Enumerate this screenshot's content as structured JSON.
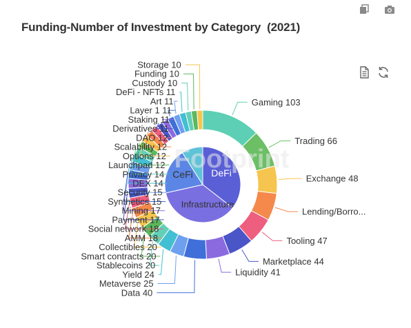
{
  "chart_data": {
    "type": "pie",
    "title": "Funding-Number of Investment by Category  (2021)",
    "watermark": "Footprint",
    "inner_ring": [
      {
        "name": "DeFi",
        "color": "#5a5fd6"
      },
      {
        "name": "Infrastructure",
        "color": "#7a6fe0"
      },
      {
        "name": "CeFi",
        "color": "#5b86e5"
      },
      {
        "name": "",
        "color": "#5fc3d8"
      }
    ],
    "series": [
      {
        "name": "Gaming",
        "value": 103,
        "label": "Gaming 103",
        "color": "#5ccfb4"
      },
      {
        "name": "Trading",
        "value": 66,
        "label": "Trading 66",
        "color": "#6cbf65"
      },
      {
        "name": "Exchange",
        "value": 48,
        "label": "Exchange 48",
        "color": "#f6c54f"
      },
      {
        "name": "Lending/Borrowing",
        "value": 48,
        "label": "Lending/Borro...",
        "color": "#f4894b"
      },
      {
        "name": "Tooling",
        "value": 47,
        "label": "Tooling 47",
        "color": "#ee5e7e"
      },
      {
        "name": "Marketplace",
        "value": 44,
        "label": "Marketplace 44",
        "color": "#4a55c8"
      },
      {
        "name": "Liquidity",
        "value": 41,
        "label": "Liquidity 41",
        "color": "#8b6ae0"
      },
      {
        "name": "Data",
        "value": 40,
        "label": "Data 40",
        "color": "#3f6fd8"
      },
      {
        "name": "Metaverse",
        "value": 25,
        "label": "Metaverse 25",
        "color": "#6fa0ef"
      },
      {
        "name": "Yield",
        "value": 24,
        "label": "Yield 24",
        "color": "#43bfd2"
      },
      {
        "name": "Stablecoins",
        "value": 20,
        "label": "Stablecoins 20",
        "color": "#62d0b8"
      },
      {
        "name": "Smart contracts",
        "value": 20,
        "label": "Smart contracts 20",
        "color": "#5cb85c"
      },
      {
        "name": "Collectibles",
        "value": 20,
        "label": "Collectibles 20",
        "color": "#f6c54f"
      },
      {
        "name": "AMM",
        "value": 18,
        "label": "AMM 18",
        "color": "#f4894b"
      },
      {
        "name": "Social network",
        "value": 18,
        "label": "Social network 18",
        "color": "#ee5e7e"
      },
      {
        "name": "Payment",
        "value": 17,
        "label": "Payment 17",
        "color": "#4a55c8"
      },
      {
        "name": "Mining",
        "value": 17,
        "label": "Mining 17",
        "color": "#8b6ae0"
      },
      {
        "name": "Synthetics",
        "value": 15,
        "label": "Synthetics 15",
        "color": "#3f6fd8"
      },
      {
        "name": "Security",
        "value": 15,
        "label": "Security 15",
        "color": "#6fa0ef"
      },
      {
        "name": "DEX",
        "value": 14,
        "label": "DEX 14",
        "color": "#43bfd2"
      },
      {
        "name": "Privacy",
        "value": 14,
        "label": "Privacy 14",
        "color": "#62d0b8"
      },
      {
        "name": "Launchpad",
        "value": 12,
        "label": "Launchpad 12",
        "color": "#5cb85c"
      },
      {
        "name": "Options",
        "value": 12,
        "label": "Options 12",
        "color": "#f6c54f"
      },
      {
        "name": "Scalability",
        "value": 12,
        "label": "Scalability 12",
        "color": "#f4894b"
      },
      {
        "name": "DAO",
        "value": 12,
        "label": "DAO 12",
        "color": "#ee5e7e"
      },
      {
        "name": "Derivatives",
        "value": 11,
        "label": "Derivatives 11",
        "color": "#4a55c8"
      },
      {
        "name": "Staking",
        "value": 11,
        "label": "Staking 11",
        "color": "#8b6ae0"
      },
      {
        "name": "Layer 1",
        "value": 11,
        "label": "Layer 1 11",
        "color": "#3f6fd8"
      },
      {
        "name": "Art",
        "value": 11,
        "label": "Art 11",
        "color": "#6fa0ef"
      },
      {
        "name": "DeFi - NFTs",
        "value": 11,
        "label": "DeFi - NFTs 11",
        "color": "#43bfd2"
      },
      {
        "name": "Custody",
        "value": 10,
        "label": "Custody 10",
        "color": "#62d0b8"
      },
      {
        "name": "Funding",
        "value": 10,
        "label": "Funding 10",
        "color": "#5cb85c"
      },
      {
        "name": "Storage",
        "value": 10,
        "label": "Storage 10",
        "color": "#f6c54f"
      }
    ]
  },
  "icons": {
    "copy": "copy-icon",
    "camera": "camera-icon",
    "data_view": "data-view-icon",
    "refresh": "refresh-icon"
  },
  "colors": {
    "title": "#333333",
    "label": "#333333",
    "icon": "#888888"
  }
}
